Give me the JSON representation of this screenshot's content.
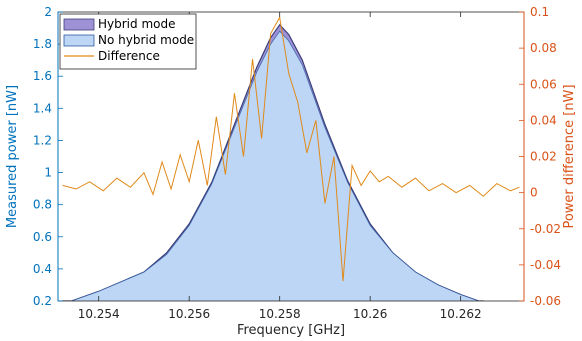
{
  "chart_data": {
    "type": "area",
    "xlabel": "Frequency [GHz]",
    "ylabel_left": "Measured power [nW]",
    "ylabel_right": "Power difference [nW]",
    "xlim": [
      10.2531,
      10.2634
    ],
    "ylim_left": [
      0.2,
      2.0
    ],
    "ylim_right": [
      -0.06,
      0.1
    ],
    "xticks": [
      10.254,
      10.256,
      10.258,
      10.26,
      10.262
    ],
    "xtick_labels": [
      "10.254",
      "10.256",
      "10.258",
      "10.26",
      "10.262"
    ],
    "yticks_left": [
      0.2,
      0.4,
      0.6,
      0.8,
      1.0,
      1.2,
      1.4,
      1.6,
      1.8,
      2.0
    ],
    "ytick_labels_left": [
      "0.2",
      "0.4",
      "0.6",
      "0.8",
      "1",
      "1.2",
      "1.4",
      "1.6",
      "1.8",
      "2"
    ],
    "yticks_right": [
      -0.06,
      -0.04,
      -0.02,
      0,
      0.02,
      0.04,
      0.06,
      0.08,
      0.1
    ],
    "ytick_labels_right": [
      "-0.06",
      "-0.04",
      "-0.02",
      "0",
      "0.02",
      "0.04",
      "0.06",
      "0.08",
      "0.1"
    ],
    "grid": false,
    "legend_position": "top-left",
    "colors": {
      "left_axis": "#0072bd",
      "right_axis": "#d95319",
      "hybrid_fill": "#9e91d6",
      "hybrid_edge": "#3c3f7a",
      "no_hybrid_fill": "#bdd6f5",
      "no_hybrid_edge": "#2c5aa0",
      "difference": "#e08a1a"
    },
    "series": [
      {
        "name": "Hybrid mode",
        "axis": "left",
        "style": "area",
        "x": [
          10.2532,
          10.254,
          10.255,
          10.2555,
          10.256,
          10.2565,
          10.257,
          10.2575,
          10.2578,
          10.258,
          10.2582,
          10.2585,
          10.259,
          10.2595,
          10.26,
          10.2605,
          10.261,
          10.2615,
          10.262,
          10.2625
        ],
        "values": [
          0.18,
          0.26,
          0.38,
          0.5,
          0.68,
          0.94,
          1.3,
          1.66,
          1.84,
          1.92,
          1.86,
          1.7,
          1.3,
          0.95,
          0.68,
          0.5,
          0.38,
          0.3,
          0.24,
          0.19
        ]
      },
      {
        "name": "No hybrid mode",
        "axis": "left",
        "style": "area",
        "x": [
          10.2532,
          10.254,
          10.255,
          10.2555,
          10.256,
          10.2565,
          10.257,
          10.2575,
          10.2578,
          10.258,
          10.2582,
          10.2585,
          10.259,
          10.2595,
          10.26,
          10.2605,
          10.261,
          10.2615,
          10.262,
          10.2625
        ],
        "values": [
          0.18,
          0.26,
          0.38,
          0.49,
          0.67,
          0.93,
          1.28,
          1.63,
          1.8,
          1.88,
          1.82,
          1.67,
          1.28,
          0.94,
          0.67,
          0.5,
          0.38,
          0.3,
          0.24,
          0.19
        ]
      },
      {
        "name": "Difference",
        "axis": "right",
        "style": "line",
        "x": [
          10.2532,
          10.2535,
          10.2538,
          10.2541,
          10.2544,
          10.2547,
          10.255,
          10.2552,
          10.2554,
          10.2556,
          10.2558,
          10.256,
          10.2562,
          10.2564,
          10.2566,
          10.2568,
          10.257,
          10.2572,
          10.2574,
          10.2576,
          10.2578,
          10.258,
          10.2582,
          10.2584,
          10.2586,
          10.2588,
          10.259,
          10.2592,
          10.2594,
          10.2596,
          10.2598,
          10.26,
          10.2602,
          10.2604,
          10.2607,
          10.261,
          10.2613,
          10.2616,
          10.2619,
          10.2622,
          10.2625,
          10.2628,
          10.2631,
          10.2633
        ],
        "values": [
          0.004,
          0.002,
          0.006,
          0.001,
          0.008,
          0.003,
          0.011,
          -0.001,
          0.017,
          0.002,
          0.021,
          0.006,
          0.029,
          0.004,
          0.042,
          0.01,
          0.055,
          0.02,
          0.074,
          0.03,
          0.088,
          0.097,
          0.066,
          0.05,
          0.022,
          0.04,
          -0.006,
          0.02,
          -0.049,
          0.015,
          0.004,
          0.012,
          0.006,
          0.009,
          0.003,
          0.008,
          0.001,
          0.005,
          0.0,
          0.004,
          -0.002,
          0.005,
          0.001,
          0.003
        ]
      }
    ]
  }
}
